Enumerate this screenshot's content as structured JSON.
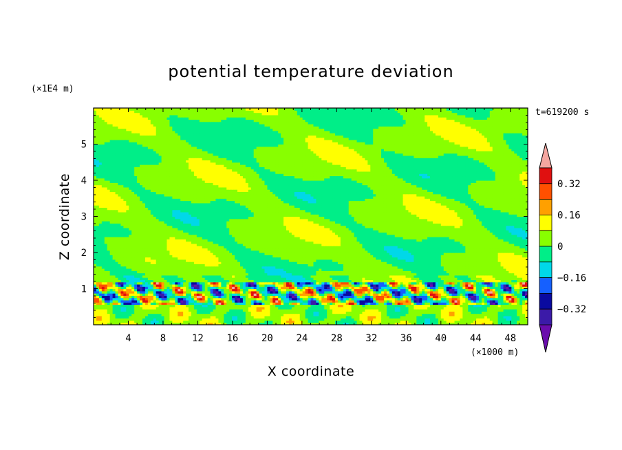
{
  "chart_data": {
    "type": "heatmap",
    "title": "potential temperature deviation",
    "xlabel": "X coordinate",
    "ylabel": "Z coordinate",
    "x_unit": "(×1000 m)",
    "y_unit": "(×1E4 m)",
    "time_label": "t=619200 s",
    "xlim": [
      0,
      50
    ],
    "ylim": [
      0,
      6
    ],
    "x_ticks": [
      4,
      8,
      12,
      16,
      20,
      24,
      28,
      32,
      36,
      40,
      44,
      48
    ],
    "y_ticks": [
      1,
      2,
      3,
      4,
      5
    ],
    "colorbar": {
      "tick_labels": [
        "0.32",
        "0.16",
        "0",
        "−0.16",
        "−0.32"
      ],
      "tick_values": [
        0.32,
        0.16,
        0,
        -0.16,
        -0.32
      ],
      "levels": [
        -0.4,
        -0.32,
        -0.24,
        -0.16,
        -0.08,
        0,
        0.08,
        0.16,
        0.24,
        0.32,
        0.4
      ],
      "colors": [
        "#6a0dad",
        "#3b1aa8",
        "#0a0aa0",
        "#1560ff",
        "#00d8e8",
        "#00ee88",
        "#88ff00",
        "#ffff00",
        "#ffa000",
        "#ff5000",
        "#e01010",
        "#f4a6a0"
      ]
    },
    "description_regions": {
      "upper_layer_z_range": [
        1.5,
        6
      ],
      "upper_layer_values": "mostly 0 to 0.08 with bands of -0.08 to 0",
      "boundary_layer_z_range": [
        0.6,
        1.2
      ],
      "boundary_layer_values": "strong variability from -0.4 to 0.4",
      "lower_layer_z_range": [
        0,
        0.6
      ],
      "lower_layer_values": "mostly -0.08 to 0.16 with patches of -0.24"
    }
  }
}
